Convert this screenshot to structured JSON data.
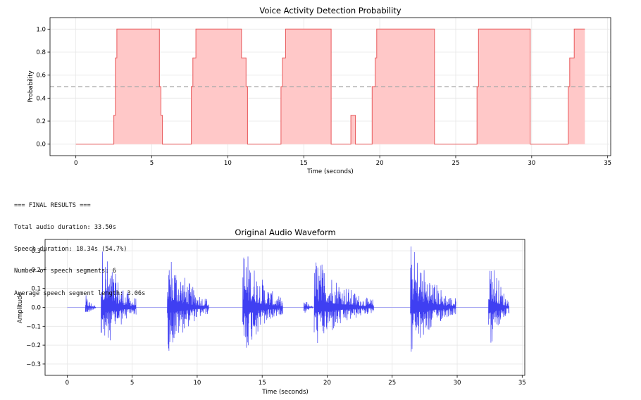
{
  "chart_data": [
    {
      "type": "area",
      "title": "Voice Activity Detection Probability",
      "xlabel": "Time (seconds)",
      "ylabel": "Probability",
      "xlim": [
        -1.7,
        35.2
      ],
      "ylim": [
        -0.1,
        1.1
      ],
      "xticks": [
        0,
        5,
        10,
        15,
        20,
        25,
        30,
        35
      ],
      "xtick_labels": [
        "0",
        "5",
        "10",
        "15",
        "20",
        "25",
        "30",
        "35"
      ],
      "yticks": [
        0.0,
        0.2,
        0.4,
        0.6,
        0.8,
        1.0
      ],
      "ytick_labels": [
        "0.0",
        "0.2",
        "0.4",
        "0.6",
        "0.8",
        "1.0"
      ],
      "threshold": 0.5,
      "grid": true,
      "colors": {
        "line": "#e8585a",
        "fill": "#ffc8c8",
        "threshold": "#a8a8a8"
      },
      "x": [
        0,
        2.5,
        2.5,
        2.6,
        2.6,
        2.7,
        2.7,
        5.5,
        5.5,
        5.6,
        5.6,
        5.7,
        5.7,
        7.6,
        7.6,
        7.7,
        7.7,
        7.9,
        7.9,
        10.9,
        10.9,
        11.2,
        11.2,
        11.3,
        11.3,
        13.5,
        13.5,
        13.6,
        13.6,
        13.8,
        13.8,
        16.8,
        16.8,
        18.1,
        18.1,
        18.4,
        18.4,
        19.5,
        19.5,
        19.7,
        19.7,
        19.8,
        19.8,
        23.6,
        23.6,
        26.4,
        26.4,
        26.5,
        26.5,
        29.9,
        29.9,
        32.4,
        32.4,
        32.5,
        32.5,
        32.8,
        32.8,
        33.5
      ],
      "y": [
        0,
        0,
        0.25,
        0.25,
        0.75,
        0.75,
        1,
        1,
        0.5,
        0.5,
        0.25,
        0.25,
        0,
        0,
        0.5,
        0.5,
        0.75,
        0.75,
        1,
        1,
        0.75,
        0.75,
        0.5,
        0.5,
        0,
        0,
        0.5,
        0.5,
        0.75,
        0.75,
        1,
        1,
        0,
        0,
        0.25,
        0.25,
        0,
        0,
        0.5,
        0.5,
        0.75,
        0.75,
        1,
        1,
        0,
        0,
        0.5,
        0.5,
        1,
        1,
        0,
        0,
        0.5,
        0.5,
        0.75,
        0.75,
        1,
        1
      ]
    },
    {
      "type": "line",
      "title": "Original Audio Waveform",
      "xlabel": "Time (seconds)",
      "ylabel": "Amplitude",
      "xlim": [
        -1.7,
        35.2
      ],
      "ylim": [
        -0.36,
        0.36
      ],
      "xticks": [
        0,
        5,
        10,
        15,
        20,
        25,
        30,
        35
      ],
      "xtick_labels": [
        "0",
        "5",
        "10",
        "15",
        "20",
        "25",
        "30",
        "35"
      ],
      "yticks": [
        -0.3,
        -0.2,
        -0.1,
        0.0,
        0.1,
        0.2,
        0.3
      ],
      "ytick_labels": [
        "−0.3",
        "−0.2",
        "−0.1",
        "0.0",
        "0.1",
        "0.2",
        "0.3"
      ],
      "grid": true,
      "colors": {
        "line": "#3f3ff2",
        "baseline": "#a8a8f2"
      },
      "duration": 33.5,
      "segments": [
        {
          "start": 1.4,
          "end": 2.2,
          "peak": 0.07
        },
        {
          "start": 2.6,
          "end": 5.3,
          "peak": 0.35
        },
        {
          "start": 7.7,
          "end": 10.9,
          "peak": 0.33
        },
        {
          "start": 13.5,
          "end": 16.6,
          "peak": 0.35
        },
        {
          "start": 18.2,
          "end": 18.9,
          "peak": 0.05
        },
        {
          "start": 19.0,
          "end": 23.6,
          "peak": 0.29
        },
        {
          "start": 26.4,
          "end": 29.9,
          "peak": 0.35
        },
        {
          "start": 32.4,
          "end": 34.0,
          "peak": 0.35
        }
      ]
    }
  ],
  "results": [
    "=== FINAL RESULTS ===",
    "Total audio duration: 33.50s",
    "Speech duration: 18.34s (54.7%)",
    "Number of speech segments: 6",
    "Average speech segment length: 3.06s"
  ]
}
